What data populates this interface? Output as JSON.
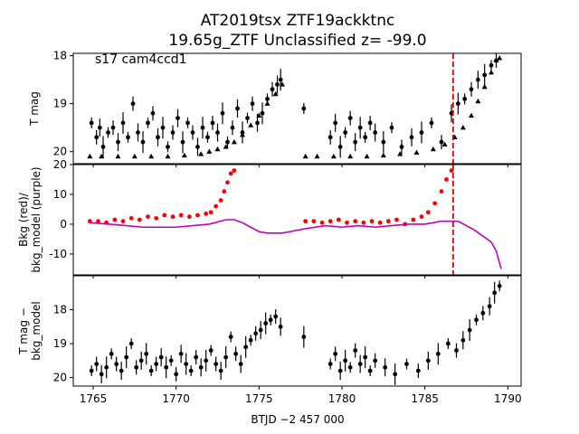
{
  "figure": {
    "title_line1": "AT2019tsx  ZTF19ackktnc",
    "title_line2": "19.65g_ZTF Unclassified z= -99.0",
    "xlabel": "BTJD −2 457 000"
  },
  "chart_data": [
    {
      "type": "scatter",
      "panel": "top",
      "annotation": "s17 cam4ccd1",
      "ylabel": "T mag",
      "xlim": [
        1763.8,
        1790.8
      ],
      "ylim": [
        20.25,
        17.95
      ],
      "y_inverted": true,
      "yticks": [
        18,
        19,
        20
      ],
      "xticks": [
        1765,
        1770,
        1775,
        1780,
        1785,
        1790
      ],
      "vline": {
        "x": 1786.7,
        "color": "#dd0000",
        "style": "dashed"
      },
      "series": [
        {
          "marker": "circle",
          "color": "#000000",
          "errorbars": true,
          "x": [
            1764.9,
            1765.2,
            1765.4,
            1765.6,
            1765.9,
            1766.2,
            1766.5,
            1766.8,
            1767.1,
            1767.4,
            1767.7,
            1768.0,
            1768.3,
            1768.6,
            1768.9,
            1769.2,
            1769.5,
            1769.8,
            1770.1,
            1770.4,
            1770.7,
            1771.0,
            1771.3,
            1771.6,
            1771.9,
            1772.2,
            1772.5,
            1772.8,
            1773.1,
            1773.4,
            1773.7,
            1774.0,
            1774.3,
            1774.6,
            1774.9,
            1775.2,
            1775.5,
            1775.8,
            1776.1,
            1776.3,
            1777.7,
            1779.3,
            1779.6,
            1779.9,
            1780.2,
            1780.5,
            1780.8,
            1781.1,
            1781.4,
            1781.7,
            1782.0,
            1782.5,
            1783.0,
            1783.6,
            1784.2,
            1784.8,
            1785.4,
            1786.0,
            1786.6,
            1787.0,
            1787.4,
            1787.8,
            1788.2,
            1788.6,
            1789.0,
            1789.3
          ],
          "y": [
            19.4,
            19.7,
            19.5,
            19.9,
            19.6,
            19.5,
            19.8,
            19.4,
            19.7,
            19.0,
            19.6,
            19.8,
            19.4,
            19.2,
            19.7,
            19.5,
            19.9,
            19.6,
            19.3,
            19.8,
            19.4,
            19.6,
            19.9,
            19.5,
            19.7,
            19.4,
            19.6,
            19.2,
            19.8,
            19.5,
            19.1,
            19.6,
            19.3,
            19.0,
            19.4,
            19.2,
            18.9,
            18.7,
            18.6,
            18.5,
            19.1,
            19.7,
            19.4,
            19.9,
            19.6,
            19.3,
            19.8,
            19.5,
            19.7,
            19.4,
            19.6,
            19.8,
            19.5,
            19.9,
            19.7,
            19.6,
            19.4,
            19.8,
            19.2,
            19.0,
            18.9,
            18.7,
            18.5,
            18.4,
            18.2,
            18.1
          ]
        },
        {
          "marker": "triangle",
          "color": "#000000",
          "x": [
            1764.8,
            1765.5,
            1766.5,
            1767.5,
            1768.5,
            1769.5,
            1770.5,
            1771.5,
            1772.0,
            1772.5,
            1773.0,
            1773.5,
            1774.0,
            1774.5,
            1775.0,
            1775.5,
            1776.0,
            1776.4,
            1777.8,
            1778.5,
            1779.5,
            1780.5,
            1781.5,
            1782.5,
            1783.5,
            1784.5,
            1785.5,
            1786.2,
            1786.8,
            1787.3,
            1787.8,
            1788.2,
            1788.6,
            1789.0,
            1789.3,
            1789.5
          ],
          "y": [
            20.1,
            20.1,
            20.1,
            20.1,
            20.1,
            20.1,
            20.08,
            20.05,
            20.0,
            19.95,
            19.9,
            19.8,
            19.65,
            19.45,
            19.25,
            19.0,
            18.8,
            18.6,
            20.1,
            20.1,
            20.1,
            20.1,
            20.1,
            20.08,
            20.05,
            20.02,
            19.95,
            19.85,
            19.7,
            19.5,
            19.25,
            18.95,
            18.65,
            18.35,
            18.1,
            18.05
          ]
        }
      ]
    },
    {
      "type": "scatter",
      "panel": "middle",
      "ylabel": "Bkg (red)/\nbkg_model (purple)",
      "xlim": [
        1763.8,
        1790.8
      ],
      "ylim": [
        -17,
        20
      ],
      "yticks": [
        20,
        10,
        0,
        -10
      ],
      "vline": {
        "x": 1786.7,
        "color": "#dd0000",
        "style": "dashed"
      },
      "series": [
        {
          "marker": "circle",
          "color": "#ff0000",
          "x": [
            1764.8,
            1765.3,
            1765.8,
            1766.3,
            1766.8,
            1767.3,
            1767.8,
            1768.3,
            1768.8,
            1769.3,
            1769.8,
            1770.3,
            1770.8,
            1771.3,
            1771.8,
            1772.1,
            1772.4,
            1772.7,
            1772.9,
            1773.1,
            1773.3,
            1773.5,
            1777.8,
            1778.3,
            1778.8,
            1779.3,
            1779.8,
            1780.3,
            1780.8,
            1781.3,
            1781.8,
            1782.3,
            1782.8,
            1783.3,
            1783.8,
            1784.3,
            1784.8,
            1785.2,
            1785.6,
            1786.0,
            1786.3,
            1786.6
          ],
          "y": [
            1,
            1,
            0.5,
            1.5,
            1,
            2,
            1.5,
            2.5,
            2,
            3,
            2.5,
            3,
            2.5,
            3,
            3.5,
            4,
            6,
            8,
            11,
            14,
            17,
            18,
            1,
            1,
            0.5,
            1,
            1.5,
            0.5,
            1,
            0.5,
            1,
            0.5,
            1,
            1.5,
            0,
            1.5,
            2.5,
            4,
            7,
            11,
            15,
            18
          ]
        },
        {
          "marker": "line",
          "color": "#c000c0",
          "x": [
            1764.8,
            1766,
            1767,
            1768,
            1769,
            1770,
            1771,
            1772,
            1773,
            1773.5,
            1774,
            1774.5,
            1775,
            1775.5,
            1776,
            1776.4,
            1777.8,
            1779,
            1780,
            1781,
            1782,
            1783,
            1784,
            1785,
            1785.5,
            1786,
            1786.5,
            1787,
            1787.5,
            1788,
            1788.5,
            1789,
            1789.3,
            1789.6
          ],
          "y": [
            0.5,
            0,
            -0.5,
            -1,
            -1,
            -1,
            -0.5,
            0,
            1.5,
            1.5,
            0.5,
            -1,
            -2.5,
            -3,
            -3,
            -3,
            -1.5,
            -0.5,
            -1,
            -0.5,
            -1,
            -0.5,
            0,
            0,
            0.5,
            1,
            1,
            1,
            -0.5,
            -2,
            -4,
            -6,
            -9,
            -15
          ]
        }
      ]
    },
    {
      "type": "scatter",
      "panel": "bottom",
      "ylabel": "T mag −\nbkg_model",
      "xlim": [
        1763.8,
        1790.8
      ],
      "ylim": [
        20.25,
        17.0
      ],
      "y_inverted": true,
      "yticks": [
        18,
        19,
        20
      ],
      "series": [
        {
          "marker": "circle",
          "color": "#000000",
          "errorbars": true,
          "x": [
            1764.9,
            1765.2,
            1765.5,
            1765.8,
            1766.1,
            1766.4,
            1766.7,
            1767.0,
            1767.3,
            1767.6,
            1767.9,
            1768.2,
            1768.5,
            1768.8,
            1769.1,
            1769.4,
            1769.7,
            1770.0,
            1770.3,
            1770.6,
            1770.9,
            1771.2,
            1771.5,
            1771.8,
            1772.1,
            1772.4,
            1772.7,
            1773.0,
            1773.3,
            1773.6,
            1773.9,
            1774.2,
            1774.5,
            1774.8,
            1775.1,
            1775.4,
            1775.7,
            1776.0,
            1776.3,
            1777.7,
            1779.3,
            1779.6,
            1779.9,
            1780.2,
            1780.5,
            1780.8,
            1781.1,
            1781.4,
            1781.7,
            1782.0,
            1782.6,
            1783.2,
            1783.9,
            1784.6,
            1785.2,
            1785.8,
            1786.4,
            1786.9,
            1787.3,
            1787.7,
            1788.1,
            1788.5,
            1788.9,
            1789.2,
            1789.5
          ],
          "y": [
            19.8,
            19.6,
            19.9,
            19.7,
            19.3,
            19.6,
            19.8,
            19.4,
            19.0,
            19.7,
            19.5,
            19.3,
            19.8,
            19.6,
            19.4,
            19.7,
            19.5,
            19.9,
            19.3,
            19.6,
            19.8,
            19.4,
            19.7,
            19.5,
            19.2,
            19.6,
            19.8,
            19.4,
            18.8,
            19.3,
            19.6,
            19.1,
            18.9,
            18.7,
            18.6,
            18.4,
            18.3,
            18.2,
            18.5,
            18.8,
            19.6,
            19.3,
            19.8,
            19.5,
            19.7,
            19.2,
            19.6,
            19.4,
            19.8,
            19.5,
            19.7,
            19.9,
            19.6,
            19.8,
            19.5,
            19.3,
            19.0,
            19.2,
            18.9,
            18.6,
            18.3,
            18.1,
            17.9,
            17.5,
            17.3
          ]
        }
      ]
    }
  ]
}
